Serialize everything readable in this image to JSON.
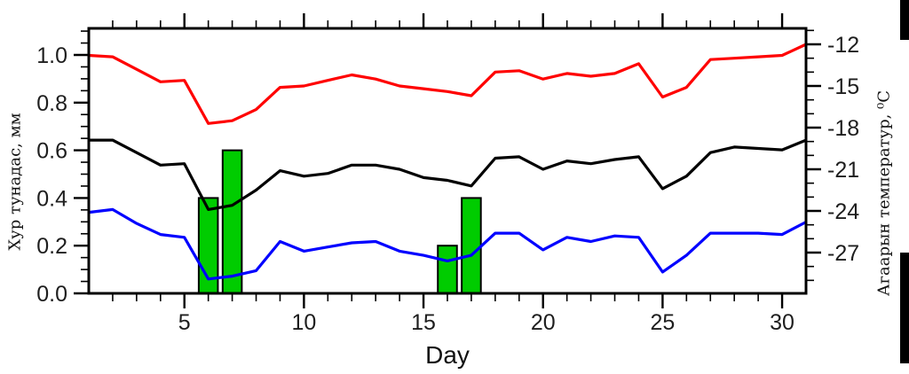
{
  "figure": {
    "xlabel": "Day",
    "ylabel_left": "Хур тунадас, мм",
    "ylabel_right": "Агаарын температур, ⁰C"
  },
  "chart_data": {
    "type": "line+bar",
    "x_label": "Day",
    "x": [
      1,
      2,
      3,
      4,
      5,
      6,
      7,
      8,
      9,
      10,
      11,
      12,
      13,
      14,
      15,
      16,
      17,
      18,
      19,
      20,
      21,
      22,
      23,
      24,
      25,
      26,
      27,
      28,
      29,
      30,
      31
    ],
    "x_major_ticks": [
      5,
      10,
      15,
      20,
      25,
      30
    ],
    "x_major_tick_labels": [
      "5",
      "10",
      "15",
      "20",
      "25",
      "30"
    ],
    "x_range": [
      1,
      31
    ],
    "grid": "off",
    "legend": "none",
    "left_axis": {
      "label": "Хур тунадас, мм",
      "unit": "mm",
      "major_ticks": [
        0.0,
        0.2,
        0.4,
        0.6,
        0.8,
        1.0
      ],
      "major_tick_labels": [
        "0.0",
        "0.2",
        "0.4",
        "0.6",
        "0.8",
        "1.0"
      ],
      "minor_step": 0.05,
      "range": [
        0.0,
        1.11
      ]
    },
    "right_axis": {
      "label": "Агаарын температур, ⁰C",
      "unit": "°C",
      "major_ticks": [
        -12,
        -15,
        -18,
        -21,
        -24,
        -27
      ],
      "major_tick_labels": [
        "-12",
        "-15",
        "-18",
        "-21",
        "-24",
        "-27"
      ],
      "minor_step": 1,
      "range": [
        -29.9,
        -10.9
      ]
    },
    "series": [
      {
        "name": "red temperature line (upper)",
        "color": "#ff0000",
        "axis": "right",
        "values": [
          -12.8,
          -12.9,
          -13.8,
          -14.7,
          -14.6,
          -17.7,
          -17.5,
          -16.7,
          -15.1,
          -15.0,
          -14.6,
          -14.2,
          -14.5,
          -15.0,
          -15.2,
          -15.4,
          -15.7,
          -14.0,
          -13.9,
          -14.5,
          -14.1,
          -14.3,
          -14.1,
          -13.4,
          -15.8,
          -15.1,
          -13.1,
          -13.0,
          -12.9,
          -12.8,
          -12.0
        ]
      },
      {
        "name": "black temperature line (middle)",
        "color": "#000000",
        "axis": "right",
        "values": [
          -18.9,
          -18.9,
          -19.8,
          -20.7,
          -20.6,
          -23.9,
          -23.6,
          -22.5,
          -21.1,
          -21.5,
          -21.3,
          -20.7,
          -20.7,
          -21.0,
          -21.6,
          -21.8,
          -22.2,
          -20.2,
          -20.1,
          -21.0,
          -20.4,
          -20.6,
          -20.3,
          -20.1,
          -22.4,
          -21.5,
          -19.8,
          -19.4,
          -19.5,
          -19.6,
          -18.9
        ]
      },
      {
        "name": "blue temperature line (lower)",
        "color": "#0000ff",
        "axis": "right",
        "values": [
          -24.1,
          -23.9,
          -24.9,
          -25.7,
          -25.9,
          -28.9,
          -28.7,
          -28.3,
          -26.2,
          -26.9,
          -26.6,
          -26.3,
          -26.2,
          -26.9,
          -27.2,
          -27.6,
          -27.2,
          -25.6,
          -25.6,
          -26.8,
          -25.9,
          -26.2,
          -25.8,
          -25.9,
          -28.4,
          -27.2,
          -25.6,
          -25.6,
          -25.6,
          -25.7,
          -24.8
        ]
      }
    ],
    "bars": {
      "name": "precipitation bars",
      "color": "#00cc00",
      "edge_color": "#000000",
      "axis": "left",
      "unit": "mm",
      "days": [
        6,
        7,
        16,
        17
      ],
      "values": [
        0.4,
        0.6,
        0.2,
        0.4
      ],
      "bar_width_days": 0.8
    }
  },
  "artifacts": {
    "right_edge_block_color": "#000000"
  }
}
